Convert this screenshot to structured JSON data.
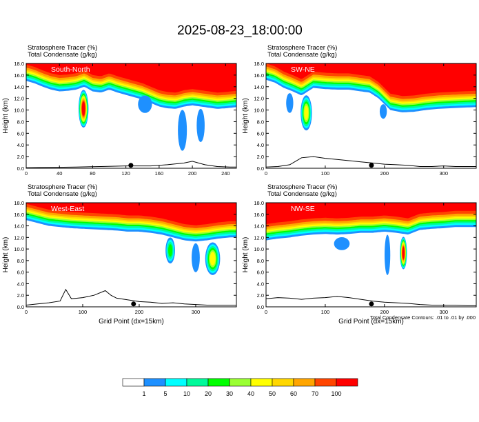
{
  "title": "2025-08-23_18:00:00",
  "panel_header": {
    "line1_label": "Stratosphere Tracer",
    "line1_unit": "(%)",
    "line2_label": "Total Condensate",
    "line2_unit": "(g/kg)"
  },
  "ylabel": "Height (km)",
  "xlabel": "Grid Point (dx=15km)",
  "contour_note": "Total Condensate Contours: .01 to .01 by .000",
  "colors": {
    "fill_levels": [
      "#ffffff",
      "#1e90ff",
      "#00ffff",
      "#00fa9a",
      "#00ff00",
      "#9aff32",
      "#ffff00",
      "#ffd700",
      "#ffa500",
      "#ff4500",
      "#ff0000"
    ]
  },
  "colorbar": {
    "labels": [
      "1",
      "5",
      "10",
      "20",
      "30",
      "40",
      "50",
      "60",
      "70",
      "100"
    ]
  },
  "chart_data": [
    {
      "type": "heatmap",
      "panel_label": "South-North",
      "xlim": [
        0,
        253
      ],
      "ylim": [
        0,
        18
      ],
      "xticks": [
        "0",
        "40",
        "80",
        "120",
        "160",
        "200",
        "240"
      ],
      "yticks": [
        "0.0",
        "2.0",
        "4.0",
        "6.0",
        "8.0",
        "10.0",
        "12.0",
        "14.0",
        "16.0",
        "18.0"
      ],
      "marker_x": 126,
      "tropopause_profile": {
        "x": [
          0,
          10,
          20,
          30,
          40,
          50,
          60,
          70,
          80,
          90,
          100,
          110,
          120,
          130,
          140,
          150,
          160,
          170,
          180,
          190,
          200,
          210,
          220,
          230,
          240,
          253
        ],
        "y": [
          15.0,
          14.6,
          14.0,
          13.5,
          13.2,
          13.3,
          13.5,
          14.0,
          13.2,
          13.0,
          13.5,
          13.0,
          12.6,
          12.2,
          11.8,
          11.2,
          10.6,
          10.3,
          10.2,
          10.6,
          10.8,
          10.6,
          10.4,
          10.2,
          10.3,
          10.5
        ]
      },
      "plumes": [
        {
          "x": 69,
          "top": 12.0,
          "bottom": 7.0,
          "width": 10,
          "peak": "red"
        },
        {
          "x": 188,
          "top": 10.0,
          "bottom": 3.0,
          "width": 9,
          "peak": "blue"
        },
        {
          "x": 210,
          "top": 10.2,
          "bottom": 4.5,
          "width": 8,
          "peak": "blue"
        },
        {
          "x": 143,
          "top": 12.5,
          "bottom": 9.5,
          "width": 14,
          "peak": "blue"
        }
      ],
      "terrain": {
        "x": [
          0,
          60,
          90,
          120,
          150,
          170,
          190,
          200,
          215,
          230,
          245,
          253
        ],
        "y": [
          0.1,
          0.2,
          0.3,
          0.4,
          0.4,
          0.6,
          0.9,
          1.2,
          0.6,
          0.3,
          0.2,
          0.2
        ]
      }
    },
    {
      "type": "heatmap",
      "panel_label": "SW-NE",
      "xlim": [
        0,
        355
      ],
      "ylim": [
        0,
        18
      ],
      "xticks": [
        "0",
        "100",
        "200",
        "300"
      ],
      "yticks": [
        "0.0",
        "2.0",
        "4.0",
        "6.0",
        "8.0",
        "10.0",
        "12.0",
        "14.0",
        "16.0",
        "18.0"
      ],
      "marker_x": 178,
      "tropopause_profile": {
        "x": [
          0,
          15,
          30,
          45,
          60,
          80,
          100,
          120,
          140,
          160,
          175,
          190,
          210,
          230,
          250,
          270,
          290,
          310,
          330,
          355
        ],
        "y": [
          15.2,
          14.7,
          13.8,
          13.2,
          12.5,
          13.8,
          13.6,
          13.5,
          13.5,
          13.2,
          13.0,
          12.0,
          10.0,
          9.6,
          9.7,
          10.0,
          10.2,
          10.3,
          10.4,
          10.5
        ]
      },
      "plumes": [
        {
          "x": 40,
          "top": 12.0,
          "bottom": 9.5,
          "width": 10,
          "peak": "blue"
        },
        {
          "x": 68,
          "top": 11.0,
          "bottom": 6.5,
          "width": 16,
          "peak": "yellow"
        },
        {
          "x": 198,
          "top": 11.0,
          "bottom": 8.5,
          "width": 10,
          "peak": "blue"
        }
      ],
      "terrain": {
        "x": [
          0,
          20,
          40,
          60,
          80,
          100,
          120,
          140,
          160,
          180,
          200,
          220,
          240,
          260,
          280,
          300,
          320,
          340,
          355
        ],
        "y": [
          0.2,
          0.3,
          0.6,
          1.8,
          2.0,
          1.7,
          1.5,
          1.3,
          1.1,
          0.9,
          0.7,
          0.6,
          0.5,
          0.3,
          0.3,
          0.4,
          0.3,
          0.3,
          0.3
        ]
      }
    },
    {
      "type": "heatmap",
      "panel_label": "West-East",
      "xlim": [
        0,
        372
      ],
      "ylim": [
        0,
        18
      ],
      "xticks": [
        "0",
        "100",
        "200",
        "300"
      ],
      "yticks": [
        "0.0",
        "2.0",
        "4.0",
        "6.0",
        "8.0",
        "10.0",
        "12.0",
        "14.0",
        "16.0",
        "18.0"
      ],
      "marker_x": 190,
      "tropopause_profile": {
        "x": [
          0,
          20,
          40,
          60,
          80,
          100,
          120,
          140,
          160,
          180,
          200,
          220,
          240,
          260,
          280,
          300,
          320,
          340,
          360,
          372
        ],
        "y": [
          15.0,
          14.5,
          14.0,
          13.8,
          13.6,
          13.5,
          13.4,
          13.3,
          13.2,
          13.0,
          13.0,
          12.8,
          12.5,
          12.0,
          11.5,
          11.3,
          11.5,
          11.8,
          12.0,
          12.0
        ]
      },
      "plumes": [
        {
          "x": 255,
          "top": 12.0,
          "bottom": 7.5,
          "width": 14,
          "peak": "green"
        },
        {
          "x": 330,
          "top": 10.0,
          "bottom": 5.5,
          "width": 22,
          "peak": "yellow"
        },
        {
          "x": 300,
          "top": 11.0,
          "bottom": 6.0,
          "width": 12,
          "peak": "blue"
        }
      ],
      "terrain": {
        "x": [
          0,
          20,
          40,
          60,
          70,
          80,
          100,
          120,
          140,
          150,
          160,
          180,
          200,
          220,
          240,
          260,
          280,
          300,
          320,
          340,
          372
        ],
        "y": [
          0.3,
          0.5,
          0.7,
          1.0,
          3.0,
          1.4,
          1.6,
          2.0,
          2.8,
          2.0,
          1.5,
          1.2,
          0.9,
          0.8,
          0.6,
          0.7,
          0.5,
          0.4,
          0.3,
          0.3,
          0.3
        ]
      }
    },
    {
      "type": "heatmap",
      "panel_label": "NW-SE",
      "xlim": [
        0,
        355
      ],
      "ylim": [
        0,
        18
      ],
      "xticks": [
        "0",
        "100",
        "200",
        "300"
      ],
      "yticks": [
        "0.0",
        "2.0",
        "4.0",
        "6.0",
        "8.0",
        "10.0",
        "12.0",
        "14.0",
        "16.0",
        "18.0"
      ],
      "marker_x": 178,
      "tropopause_profile": {
        "x": [
          0,
          20,
          40,
          60,
          80,
          100,
          120,
          140,
          160,
          180,
          200,
          220,
          240,
          260,
          280,
          300,
          320,
          340,
          355
        ],
        "y": [
          11.5,
          11.8,
          12.0,
          12.3,
          12.5,
          12.6,
          12.5,
          12.6,
          12.8,
          12.8,
          13.0,
          12.8,
          12.5,
          13.3,
          13.5,
          13.6,
          13.8,
          13.8,
          13.8
        ]
      },
      "plumes": [
        {
          "x": 232,
          "top": 12.0,
          "bottom": 6.5,
          "width": 10,
          "peak": "red"
        },
        {
          "x": 205,
          "top": 12.0,
          "bottom": 5.5,
          "width": 8,
          "peak": "blue"
        },
        {
          "x": 128,
          "top": 12.0,
          "bottom": 9.8,
          "width": 22,
          "peak": "blue"
        }
      ],
      "terrain": {
        "x": [
          0,
          20,
          40,
          60,
          80,
          100,
          120,
          140,
          160,
          180,
          200,
          220,
          240,
          260,
          280,
          300,
          320,
          340,
          355
        ],
        "y": [
          1.4,
          1.6,
          1.5,
          1.3,
          1.5,
          1.6,
          1.8,
          1.6,
          1.3,
          1.0,
          0.8,
          0.7,
          0.6,
          0.4,
          0.3,
          0.3,
          0.3,
          0.2,
          0.2
        ]
      }
    }
  ]
}
